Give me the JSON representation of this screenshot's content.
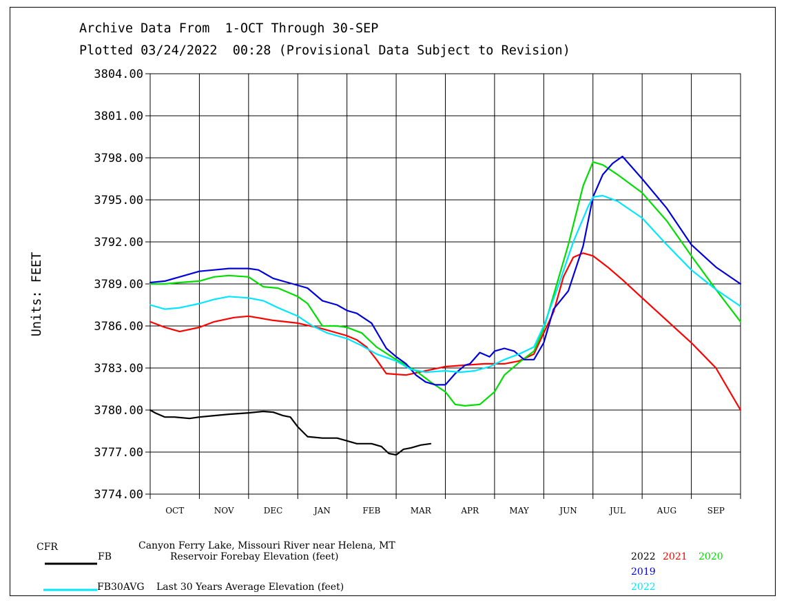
{
  "header": {
    "line1": "Archive Data From  1-OCT Through 30-SEP",
    "line2": "Plotted 03/24/2022  00:28 (Provisional Data Subject to Revision)"
  },
  "footer": {
    "station_code": "CFR",
    "station_name": "Canyon Ferry Lake, Missouri River near Helena, MT",
    "fb_code": "FB",
    "fb_desc": "Reservoir Forebay Elevation (feet)",
    "avg_code": "FB30AVG",
    "avg_desc": "Last 30 Years Average Elevation (feet)",
    "year_2022": "2022",
    "year_2021": "2021",
    "year_2020": "2020",
    "year_2019": "2019",
    "avg_year": "2022"
  },
  "colors": {
    "2022": "#000000",
    "2021": "#ff0000",
    "2020": "#00dd00",
    "2019": "#0000dd",
    "avg": "#00e6ff",
    "grid": "#000000"
  },
  "chart_data": {
    "type": "line",
    "ylabel": "Units: FEET",
    "ylim": [
      3774,
      3804
    ],
    "yticks": [
      "3804.00",
      "3801.00",
      "3798.00",
      "3795.00",
      "3792.00",
      "3789.00",
      "3786.00",
      "3783.00",
      "3780.00",
      "3777.00",
      "3774.00"
    ],
    "xlim": [
      0,
      12
    ],
    "categories": [
      "OCT",
      "NOV",
      "DEC",
      "JAN",
      "FEB",
      "MAR",
      "APR",
      "MAY",
      "JUN",
      "JUL",
      "AUG",
      "SEP"
    ],
    "grid": true,
    "series": [
      {
        "name": "2022",
        "key": "2022",
        "width": 2.2,
        "x": [
          0,
          0.1,
          0.3,
          0.5,
          0.8,
          1.0,
          1.3,
          1.6,
          2.0,
          2.3,
          2.5,
          2.7,
          2.85,
          3.0,
          3.2,
          3.5,
          3.8,
          4.0,
          4.2,
          4.5,
          4.7,
          4.85,
          5.0,
          5.15,
          5.3,
          5.5,
          5.7
        ],
        "y": [
          3780.0,
          3779.8,
          3779.5,
          3779.5,
          3779.4,
          3779.5,
          3779.6,
          3779.7,
          3779.8,
          3779.9,
          3779.85,
          3779.6,
          3779.5,
          3778.8,
          3778.1,
          3778.0,
          3778.0,
          3777.8,
          3777.6,
          3777.6,
          3777.4,
          3776.9,
          3776.8,
          3777.2,
          3777.3,
          3777.5,
          3777.6
        ]
      },
      {
        "name": "2021",
        "key": "2021",
        "width": 2.2,
        "x": [
          0,
          0.3,
          0.6,
          1.0,
          1.3,
          1.7,
          2.0,
          2.5,
          3.0,
          3.5,
          4.0,
          4.2,
          4.4,
          4.6,
          4.8,
          5.2,
          5.6,
          6.0,
          6.4,
          6.8,
          7.2,
          7.5,
          7.8,
          8.0,
          8.2,
          8.4,
          8.6,
          8.8,
          9.0,
          9.3,
          9.6,
          10.0,
          10.5,
          11.0,
          11.5,
          12.0
        ],
        "y": [
          3786.3,
          3785.9,
          3785.6,
          3785.9,
          3786.3,
          3786.6,
          3786.7,
          3786.4,
          3786.2,
          3785.8,
          3785.3,
          3785.0,
          3784.5,
          3783.6,
          3782.6,
          3782.5,
          3782.8,
          3783.1,
          3783.2,
          3783.3,
          3783.3,
          3783.5,
          3784.0,
          3785.5,
          3787.0,
          3789.5,
          3790.9,
          3791.2,
          3791.0,
          3790.2,
          3789.3,
          3788.0,
          3786.4,
          3784.8,
          3783.0,
          3780.0
        ]
      },
      {
        "name": "2020",
        "key": "2020",
        "width": 2.2,
        "x": [
          0,
          0.3,
          0.6,
          1.0,
          1.3,
          1.6,
          2.0,
          2.3,
          2.6,
          3.0,
          3.2,
          3.5,
          3.8,
          4.0,
          4.3,
          4.6,
          5.0,
          5.4,
          5.7,
          6.0,
          6.2,
          6.4,
          6.7,
          7.0,
          7.2,
          7.5,
          7.8,
          8.0,
          8.2,
          8.5,
          8.8,
          9.0,
          9.2,
          9.5,
          10.0,
          10.5,
          11.0,
          11.5,
          12.0
        ],
        "y": [
          3789.0,
          3789.0,
          3789.1,
          3789.2,
          3789.5,
          3789.6,
          3789.5,
          3788.8,
          3788.7,
          3788.1,
          3787.6,
          3786.0,
          3786.0,
          3785.9,
          3785.5,
          3784.5,
          3783.6,
          3782.8,
          3782.0,
          3781.3,
          3780.4,
          3780.3,
          3780.4,
          3781.3,
          3782.5,
          3783.4,
          3784.2,
          3785.8,
          3788.2,
          3791.8,
          3796.0,
          3797.7,
          3797.5,
          3796.8,
          3795.5,
          3793.5,
          3791.0,
          3788.6,
          3786.3
        ]
      },
      {
        "name": "2019",
        "key": "2019",
        "width": 2.2,
        "x": [
          0,
          0.3,
          0.6,
          1.0,
          1.3,
          1.6,
          2.0,
          2.2,
          2.5,
          2.8,
          3.0,
          3.2,
          3.5,
          3.8,
          4.0,
          4.2,
          4.5,
          4.8,
          5.0,
          5.2,
          5.4,
          5.6,
          5.8,
          6.0,
          6.2,
          6.4,
          6.5,
          6.7,
          6.9,
          7.0,
          7.2,
          7.4,
          7.6,
          7.8,
          8.0,
          8.2,
          8.5,
          8.8,
          9.0,
          9.2,
          9.4,
          9.6,
          10.0,
          10.5,
          11.0,
          11.5,
          12.0
        ],
        "y": [
          3789.1,
          3789.2,
          3789.5,
          3789.9,
          3790.0,
          3790.1,
          3790.1,
          3790.0,
          3789.4,
          3789.1,
          3788.9,
          3788.7,
          3787.8,
          3787.5,
          3787.1,
          3786.9,
          3786.2,
          3784.4,
          3783.8,
          3783.3,
          3782.5,
          3782.0,
          3781.8,
          3781.8,
          3782.6,
          3783.2,
          3783.3,
          3784.1,
          3783.8,
          3784.2,
          3784.4,
          3784.2,
          3783.6,
          3783.6,
          3784.8,
          3787.2,
          3788.5,
          3791.7,
          3795.2,
          3796.8,
          3797.6,
          3798.1,
          3796.5,
          3794.4,
          3791.8,
          3790.2,
          3789.0
        ]
      },
      {
        "name": "2022",
        "key": "avg",
        "width": 2.2,
        "x": [
          0,
          0.3,
          0.6,
          1.0,
          1.3,
          1.6,
          2.0,
          2.3,
          2.6,
          3.0,
          3.3,
          3.6,
          4.0,
          4.3,
          4.6,
          5.0,
          5.3,
          5.6,
          6.0,
          6.3,
          6.6,
          6.9,
          7.2,
          7.5,
          7.8,
          8.0,
          8.3,
          8.6,
          8.9,
          9.0,
          9.2,
          9.5,
          10.0,
          10.5,
          11.0,
          11.5,
          12.0
        ],
        "y": [
          3787.5,
          3787.2,
          3787.3,
          3787.6,
          3787.9,
          3788.1,
          3788.0,
          3787.8,
          3787.3,
          3786.7,
          3786.0,
          3785.5,
          3785.1,
          3784.6,
          3784.0,
          3783.5,
          3782.9,
          3782.7,
          3782.8,
          3782.7,
          3782.8,
          3783.1,
          3783.6,
          3784.0,
          3784.5,
          3786.0,
          3788.9,
          3792.0,
          3794.5,
          3795.2,
          3795.3,
          3794.9,
          3793.7,
          3791.8,
          3790.0,
          3788.6,
          3787.4
        ]
      }
    ]
  }
}
